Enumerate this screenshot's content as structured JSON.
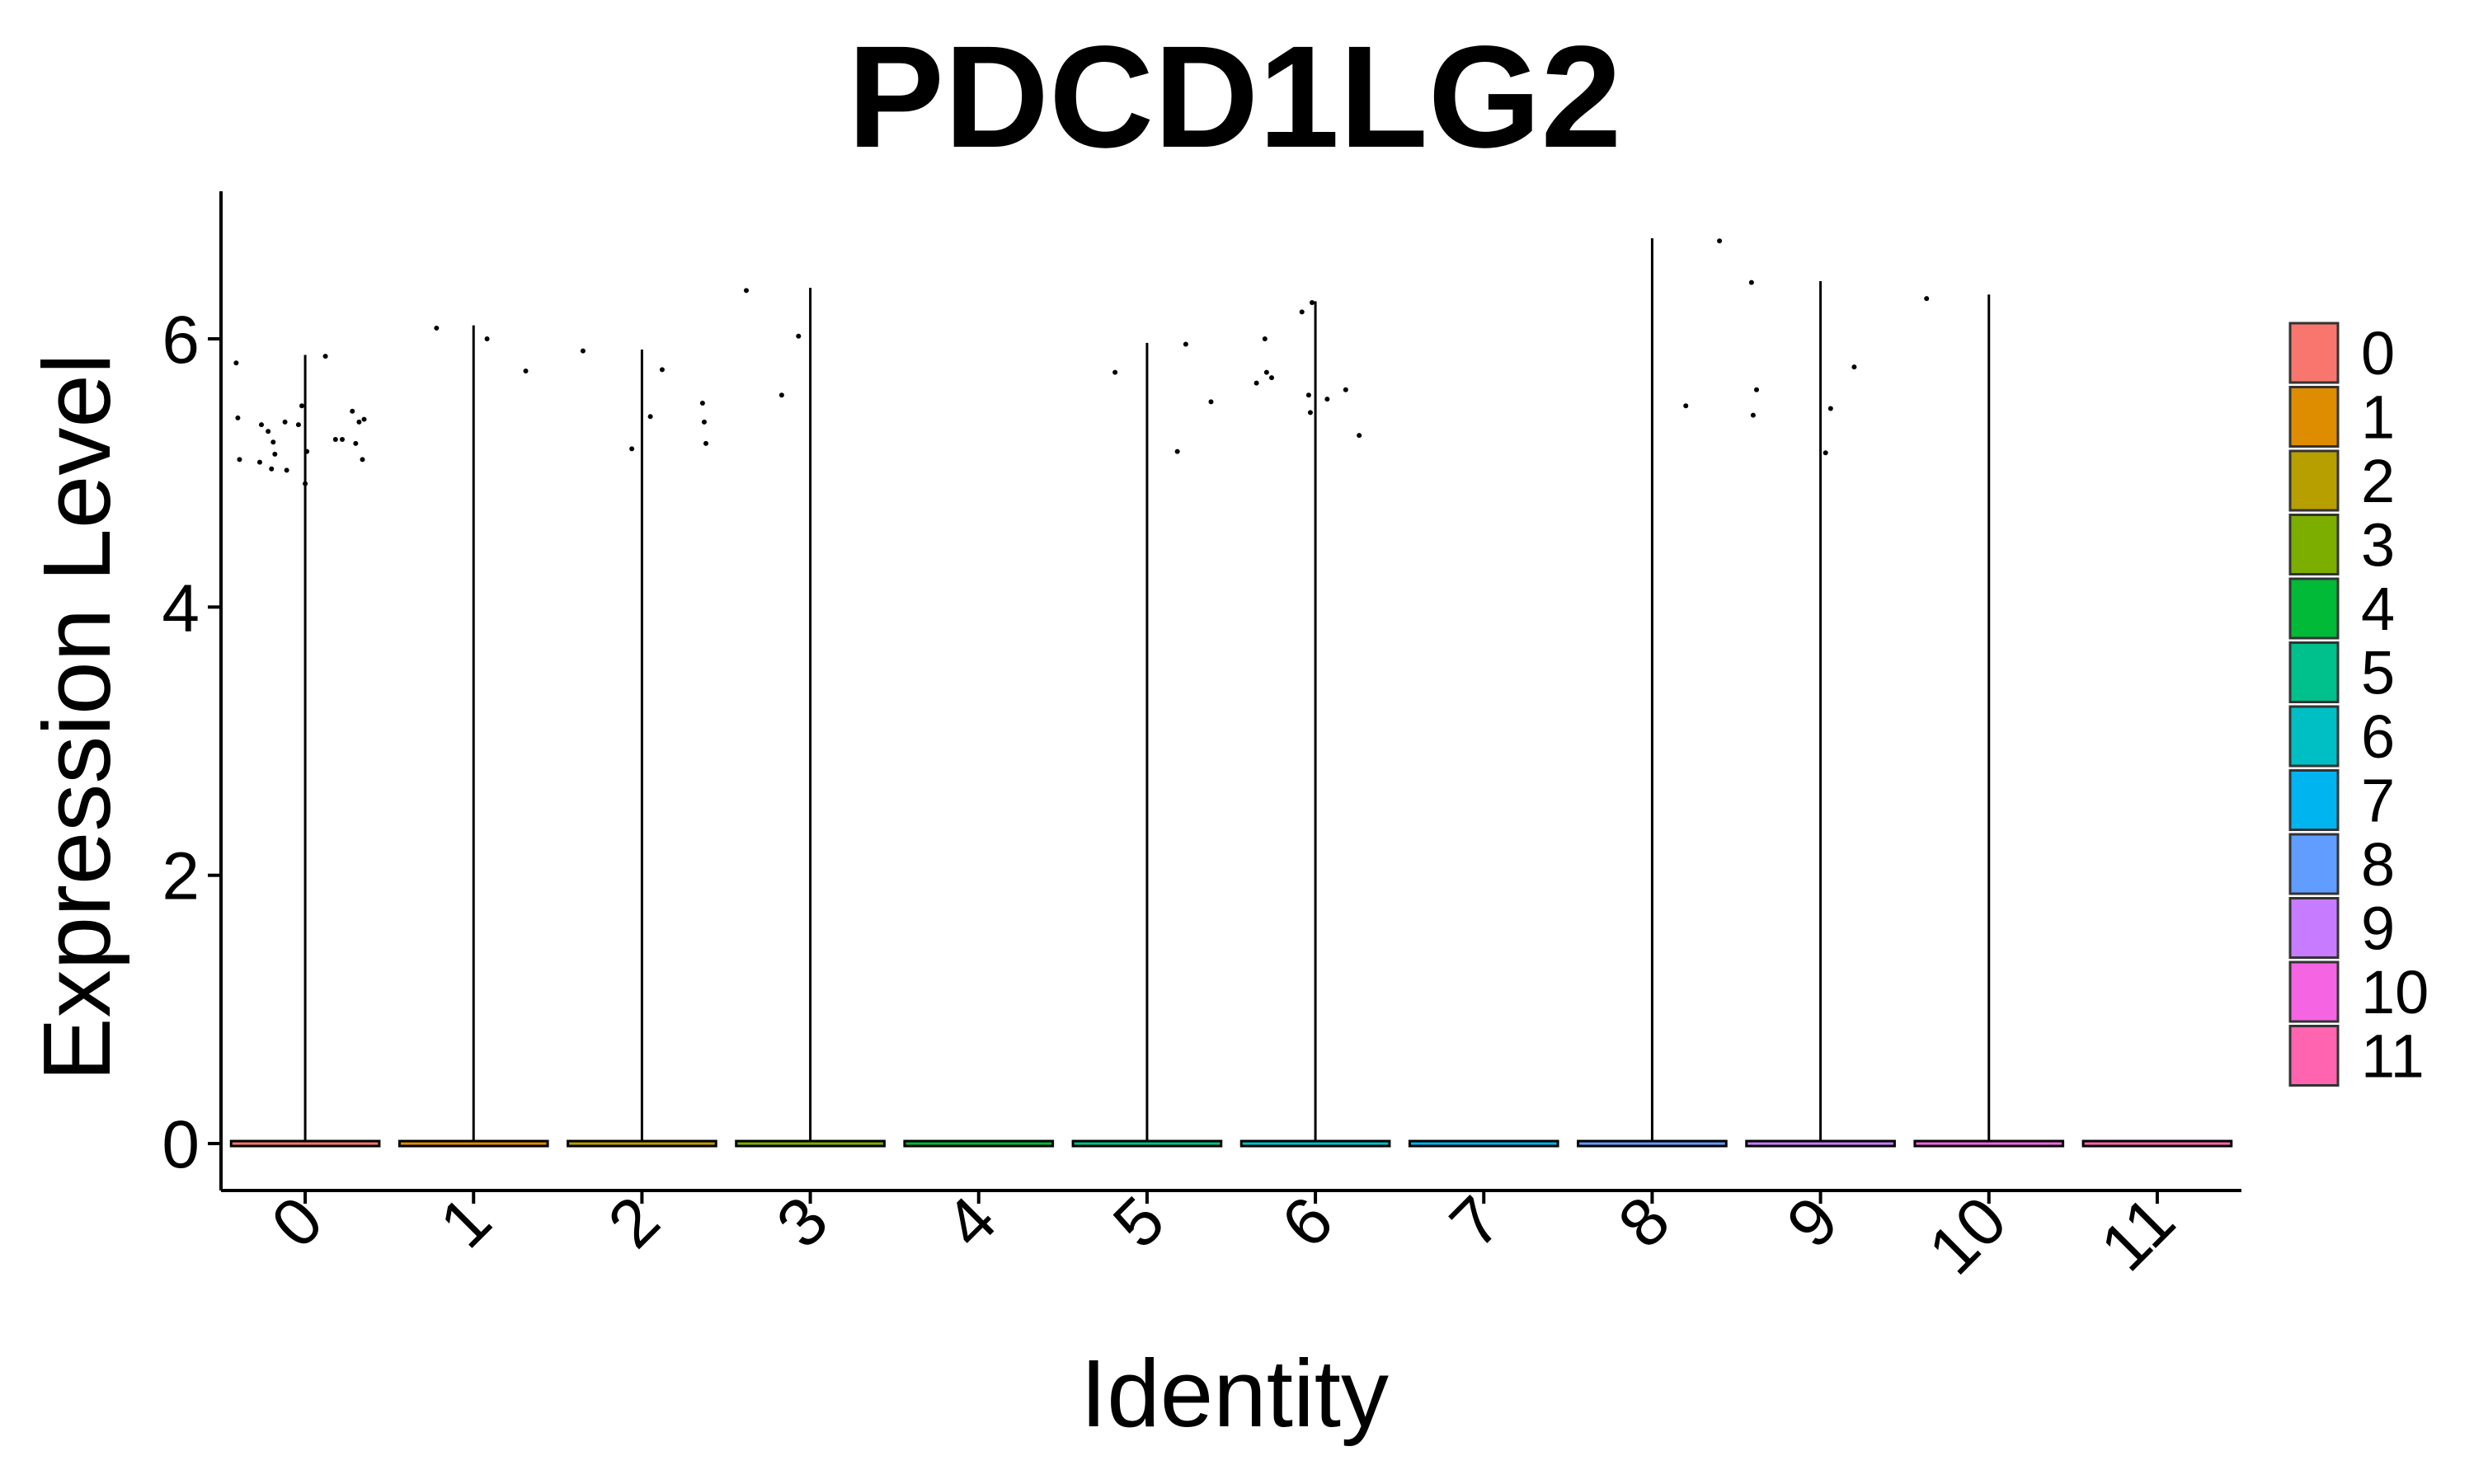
{
  "chart_data": {
    "type": "violin",
    "title": "PDCD1LG2",
    "xlabel": "Identity",
    "ylabel": "Expression Level",
    "ylim": [
      -0.35,
      7.1
    ],
    "y_ticks": [
      0,
      2,
      4,
      6
    ],
    "categories": [
      "0",
      "1",
      "2",
      "3",
      "4",
      "5",
      "6",
      "7",
      "8",
      "9",
      "10",
      "11"
    ],
    "x_tick_rotation_deg": 45,
    "legend_position": "right",
    "legend": [
      {
        "label": "0",
        "color": "#F8766D"
      },
      {
        "label": "1",
        "color": "#DE8C00"
      },
      {
        "label": "2",
        "color": "#B79F00"
      },
      {
        "label": "3",
        "color": "#7CAE00"
      },
      {
        "label": "4",
        "color": "#00BA38"
      },
      {
        "label": "5",
        "color": "#00C08B"
      },
      {
        "label": "6",
        "color": "#00BFC4"
      },
      {
        "label": "7",
        "color": "#00B4F0"
      },
      {
        "label": "8",
        "color": "#619CFF"
      },
      {
        "label": "9",
        "color": "#C77CFF"
      },
      {
        "label": "10",
        "color": "#F564E3"
      },
      {
        "label": "11",
        "color": "#FF64B0"
      }
    ],
    "series": [
      {
        "category": "0",
        "max": 5.88,
        "bulk": 0,
        "outliers": [
          {
            "x": -0.41,
            "y": 5.82
          },
          {
            "x": -0.4,
            "y": 5.41
          },
          {
            "x": -0.39,
            "y": 5.1
          },
          {
            "x": -0.27,
            "y": 5.08
          },
          {
            "x": -0.26,
            "y": 5.36
          },
          {
            "x": -0.22,
            "y": 5.31
          },
          {
            "x": -0.2,
            "y": 5.03
          },
          {
            "x": -0.19,
            "y": 5.23
          },
          {
            "x": -0.18,
            "y": 5.14
          },
          {
            "x": -0.12,
            "y": 5.38
          },
          {
            "x": -0.11,
            "y": 5.02
          },
          {
            "x": -0.04,
            "y": 5.36
          },
          {
            "x": -0.02,
            "y": 5.5
          },
          {
            "x": 0.0,
            "y": 4.92
          },
          {
            "x": 0.01,
            "y": 5.16
          },
          {
            "x": 0.12,
            "y": 5.87
          },
          {
            "x": 0.18,
            "y": 5.25
          },
          {
            "x": 0.22,
            "y": 5.25
          },
          {
            "x": 0.28,
            "y": 5.46
          },
          {
            "x": 0.3,
            "y": 5.22
          },
          {
            "x": 0.32,
            "y": 5.38
          },
          {
            "x": 0.34,
            "y": 5.1
          },
          {
            "x": 0.35,
            "y": 5.4
          }
        ]
      },
      {
        "category": "1",
        "max": 6.1,
        "bulk": 0,
        "outliers": [
          {
            "x": -0.22,
            "y": 6.08
          },
          {
            "x": 0.08,
            "y": 6.0
          },
          {
            "x": 0.31,
            "y": 5.76
          }
        ]
      },
      {
        "category": "2",
        "max": 5.92,
        "bulk": 0,
        "outliers": [
          {
            "x": -0.35,
            "y": 5.91
          },
          {
            "x": -0.06,
            "y": 5.18
          },
          {
            "x": 0.05,
            "y": 5.42
          },
          {
            "x": 0.12,
            "y": 5.77
          },
          {
            "x": 0.36,
            "y": 5.52
          },
          {
            "x": 0.37,
            "y": 5.38
          },
          {
            "x": 0.38,
            "y": 5.22
          }
        ]
      },
      {
        "category": "3",
        "max": 6.38,
        "bulk": 0,
        "outliers": [
          {
            "x": -0.38,
            "y": 6.36
          },
          {
            "x": -0.17,
            "y": 5.58
          },
          {
            "x": -0.07,
            "y": 6.02
          }
        ]
      },
      {
        "category": "4",
        "max": 0,
        "bulk": 0,
        "outliers": []
      },
      {
        "category": "5",
        "max": 5.97,
        "bulk": 0,
        "outliers": [
          {
            "x": -0.19,
            "y": 5.75
          },
          {
            "x": 0.18,
            "y": 5.16
          },
          {
            "x": 0.23,
            "y": 5.96
          },
          {
            "x": 0.38,
            "y": 5.53
          }
        ]
      },
      {
        "category": "6",
        "max": 6.28,
        "bulk": 0,
        "outliers": [
          {
            "x": -0.35,
            "y": 5.67
          },
          {
            "x": -0.3,
            "y": 6.0
          },
          {
            "x": -0.29,
            "y": 5.75
          },
          {
            "x": -0.26,
            "y": 5.71
          },
          {
            "x": -0.08,
            "y": 6.2
          },
          {
            "x": -0.04,
            "y": 5.58
          },
          {
            "x": -0.03,
            "y": 5.45
          },
          {
            "x": -0.02,
            "y": 6.27
          },
          {
            "x": 0.07,
            "y": 5.55
          },
          {
            "x": 0.18,
            "y": 5.62
          },
          {
            "x": 0.26,
            "y": 5.28
          }
        ]
      },
      {
        "category": "7",
        "max": 0,
        "bulk": 0,
        "outliers": []
      },
      {
        "category": "8",
        "max": 6.75,
        "bulk": 0,
        "outliers": [
          {
            "x": 0.2,
            "y": 5.5
          },
          {
            "x": 0.4,
            "y": 6.73
          }
        ]
      },
      {
        "category": "9",
        "max": 6.43,
        "bulk": 0,
        "outliers": [
          {
            "x": -0.41,
            "y": 6.42
          },
          {
            "x": -0.4,
            "y": 5.43
          },
          {
            "x": -0.38,
            "y": 5.62
          },
          {
            "x": 0.03,
            "y": 5.15
          },
          {
            "x": 0.06,
            "y": 5.48
          },
          {
            "x": 0.2,
            "y": 5.79
          }
        ]
      },
      {
        "category": "10",
        "max": 6.33,
        "bulk": 0,
        "outliers": [
          {
            "x": -0.37,
            "y": 6.3
          }
        ]
      },
      {
        "category": "11",
        "max": 0,
        "bulk": 0,
        "outliers": []
      }
    ]
  }
}
